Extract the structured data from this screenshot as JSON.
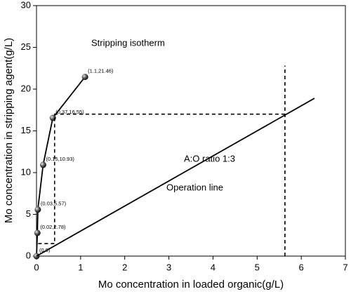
{
  "chart_data": {
    "type": "line",
    "xlabel": "Mo concentration in loaded organic(g/L)",
    "ylabel": "Mo concentration in stripping agent(g/L)",
    "xlim": [
      0,
      7
    ],
    "ylim": [
      0,
      30
    ],
    "xticks": [
      0,
      1,
      2,
      3,
      4,
      5,
      6,
      7
    ],
    "yticks": [
      0,
      5,
      10,
      15,
      20,
      25,
      30
    ],
    "series": [
      {
        "color": "#000000",
        "marker": true,
        "dash": false,
        "x": [
          0,
          0.02,
          0.03,
          0.15,
          0.37,
          1.1
        ],
        "values": [
          0,
          2.78,
          5.57,
          10.93,
          16.55,
          21.46
        ],
        "value_labels": [
          "(0,0)",
          "(0.02,2.78)",
          "(0.03,5.57)",
          "(0.15,10.93)",
          "(0.37,16.55)",
          "(1.1,21.46)"
        ]
      },
      {
        "color": "#000000",
        "marker": false,
        "dash": false,
        "x": [
          0,
          6.3
        ],
        "values": [
          0,
          18.9
        ]
      },
      {
        "color": "#000000",
        "marker": false,
        "dash": true,
        "x": [
          5.63,
          5.63
        ],
        "values": [
          0,
          22.8
        ]
      },
      {
        "color": "#000000",
        "marker": false,
        "dash": true,
        "x": [
          5.63,
          0.41,
          0.41,
          0
        ],
        "values": [
          17,
          17,
          1.5,
          1.5
        ]
      }
    ],
    "annotations": [
      "Stripping isotherm",
      "A:O ratio 1:3",
      "Operation line"
    ]
  }
}
